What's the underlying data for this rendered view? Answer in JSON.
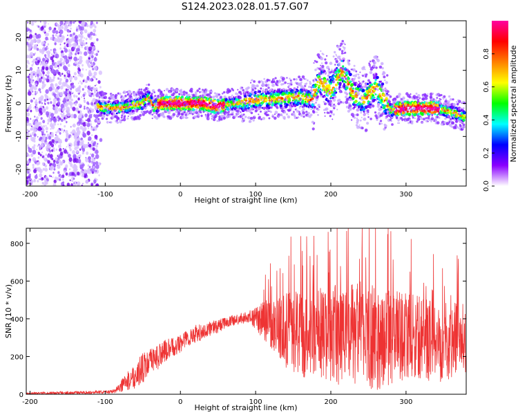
{
  "figure": {
    "title": "S124.2023.028.01.57.G07"
  },
  "chart_data": [
    {
      "type": "heatmap",
      "title": "S124.2023.028.01.57.G07",
      "xlabel": "Height of straight line (km)",
      "ylabel": "Frequency (Hz)",
      "xlim": [
        -205,
        380
      ],
      "ylim": [
        -25,
        25
      ],
      "xticks": [
        -200,
        -100,
        0,
        100,
        200,
        300
      ],
      "yticks": [
        -20,
        -10,
        0,
        10,
        20
      ],
      "colorbar": {
        "label": "Normalized spectral amplitude",
        "range": [
          0,
          1
        ],
        "ticks": [
          "0.0",
          "0.2",
          "0.4",
          "0.6",
          "0.8"
        ],
        "tick_values": [
          0,
          0.2,
          0.4,
          0.6,
          0.8
        ],
        "colors": [
          "#ffffff",
          "#8a00ff",
          "#0000ff",
          "#00ffff",
          "#00ff00",
          "#ffff00",
          "#ff8000",
          "#ff0000",
          "#ff00a0"
        ]
      },
      "ridge_frequency": {
        "x": [
          -110,
          -90,
          -70,
          -50,
          -42,
          -35,
          -25,
          0,
          30,
          50,
          70,
          100,
          130,
          160,
          175,
          185,
          200,
          215,
          230,
          245,
          260,
          280,
          300,
          320,
          340,
          360,
          378
        ],
        "y": [
          -1,
          -1.5,
          -1,
          0,
          2,
          -1,
          0,
          0,
          0,
          -1,
          0,
          1,
          1.5,
          2,
          1,
          7,
          4,
          10,
          3,
          1,
          5,
          -2,
          -1.5,
          -1.5,
          -1.5,
          -2.5,
          -4
        ]
      },
      "noise_region_x": [
        -205,
        -110
      ]
    },
    {
      "type": "line",
      "xlabel": "Height of straight line (km)",
      "ylabel": "SNR (10 * v/v)",
      "xlim": [
        -205,
        380
      ],
      "ylim": [
        0,
        880
      ],
      "xticks": [
        -200,
        -100,
        0,
        100,
        200,
        300
      ],
      "yticks": [
        0,
        200,
        400,
        600,
        800
      ],
      "color": "#ee3333",
      "envelope": {
        "x": [
          -205,
          -150,
          -120,
          -100,
          -90,
          -80,
          -70,
          -60,
          -50,
          -40,
          -30,
          -20,
          -10,
          0,
          10,
          20,
          30,
          40,
          50,
          60,
          70,
          80,
          90,
          100,
          110,
          120,
          130,
          140,
          160,
          180,
          200,
          220,
          240,
          260,
          280,
          300,
          320,
          340,
          360,
          380
        ],
        "mean": [
          5,
          8,
          10,
          12,
          15,
          40,
          70,
          100,
          140,
          170,
          200,
          230,
          250,
          270,
          300,
          320,
          330,
          350,
          360,
          380,
          390,
          400,
          410,
          400,
          390,
          380,
          360,
          340,
          320,
          320,
          320,
          310,
          320,
          300,
          300,
          310,
          300,
          280,
          280,
          300
        ],
        "spread": [
          5,
          8,
          8,
          8,
          10,
          30,
          50,
          70,
          80,
          70,
          70,
          60,
          50,
          50,
          50,
          50,
          40,
          40,
          35,
          30,
          30,
          30,
          30,
          60,
          100,
          130,
          160,
          200,
          230,
          250,
          260,
          280,
          280,
          280,
          250,
          230,
          220,
          220,
          200,
          200
        ]
      }
    }
  ]
}
